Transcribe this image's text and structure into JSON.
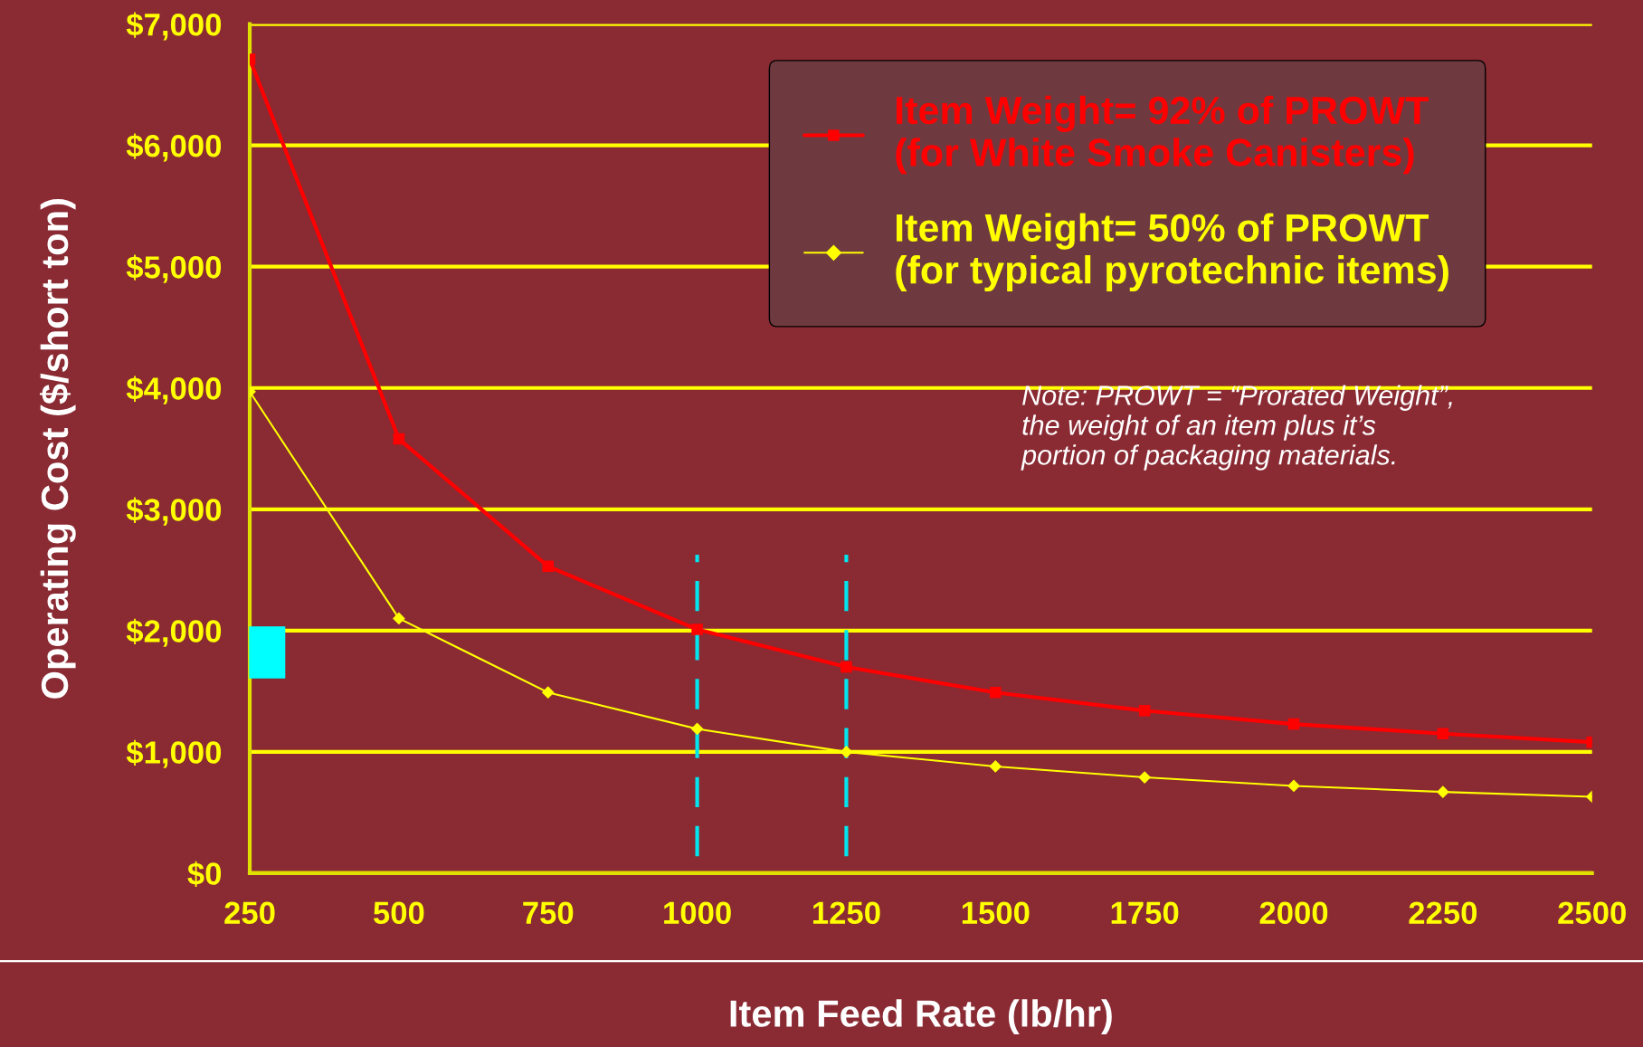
{
  "chart_data": {
    "type": "line",
    "xlabel": "Item Feed Rate (lb/hr)",
    "ylabel": "Operating Cost ($/short ton)",
    "x": [
      250,
      500,
      750,
      1000,
      1250,
      1500,
      1750,
      2000,
      2250,
      2500
    ],
    "series": [
      {
        "name": "Item Weight= 92% of PROWT\n(for White Smoke Canisters)",
        "color": "#ff0000",
        "marker": "square",
        "values": [
          6710,
          3580,
          2530,
          2010,
          1700,
          1490,
          1340,
          1230,
          1150,
          1080
        ]
      },
      {
        "name": "Item Weight= 50% of PROWT\n(for typical pyrotechnic items)",
        "color": "#ffff00",
        "marker": "diamond",
        "values": [
          3970,
          2100,
          1490,
          1190,
          1000,
          880,
          790,
          720,
          670,
          630
        ]
      }
    ],
    "xlim": [
      250,
      2500
    ],
    "xticks": [
      250,
      500,
      750,
      1000,
      1250,
      1500,
      1750,
      2000,
      2250,
      2500
    ],
    "ylim": [
      0,
      7000
    ],
    "yticks": [
      {
        "value": 0,
        "label": "$0"
      },
      {
        "value": 1000,
        "label": "$1,000"
      },
      {
        "value": 2000,
        "label": "$2,000"
      },
      {
        "value": 3000,
        "label": "$3,000"
      },
      {
        "value": 4000,
        "label": "$4,000"
      },
      {
        "value": 5000,
        "label": "$5,000"
      },
      {
        "value": 6000,
        "label": "$6,000"
      },
      {
        "value": 7000,
        "label": "$7,000"
      }
    ],
    "grid": "y",
    "legend": "top right",
    "line_style": "solid",
    "ref_lines": [
      {
        "axis": "x",
        "value": 1000,
        "color": "#00e5ee",
        "line_style": "dashed"
      },
      {
        "axis": "x",
        "value": 1250,
        "color": "#00e5ee",
        "line_style": "dashed"
      }
    ],
    "annotations": [
      "Note: PROWT = “Prorated Weight”,\nthe weight of an item plus it’s\nportion of packaging materials."
    ]
  }
}
